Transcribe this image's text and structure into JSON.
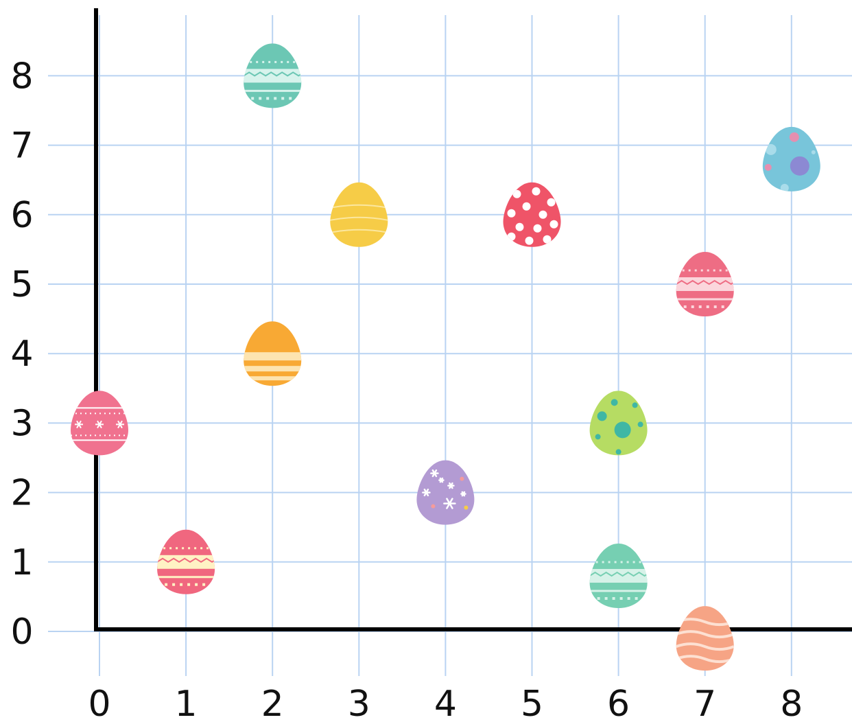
{
  "chart_data": {
    "type": "scatter",
    "title": "",
    "xlabel": "",
    "ylabel": "",
    "xlim": [
      0,
      8
    ],
    "ylim": [
      0,
      8
    ],
    "x_ticks": [
      "0",
      "1",
      "2",
      "3",
      "4",
      "5",
      "6",
      "7",
      "8"
    ],
    "y_ticks": [
      "0",
      "1",
      "2",
      "3",
      "4",
      "5",
      "6",
      "7",
      "8"
    ],
    "grid": true,
    "grid_color": "#b9d3f2",
    "axis_color": "#000000",
    "points": [
      {
        "x": 0,
        "y": 3,
        "marker": "pink-egg-stars",
        "color": "#f0728f",
        "accent": "#ffffff",
        "pattern": "stars"
      },
      {
        "x": 1,
        "y": 1,
        "marker": "red-cream-egg-zigzag",
        "color": "#f0677f",
        "accent": "#fff2c4",
        "pattern": "band"
      },
      {
        "x": 2,
        "y": 8,
        "marker": "teal-egg-dots",
        "color": "#6cc7b4",
        "accent": "#d7f3ec",
        "pattern": "band"
      },
      {
        "x": 2,
        "y": 4,
        "marker": "orange-egg-stripes",
        "color": "#f8a934",
        "accent": "#fde4b0",
        "pattern": "stripes"
      },
      {
        "x": 3,
        "y": 6,
        "marker": "yellow-egg-lines",
        "color": "#f6cc47",
        "accent": "#fbe7a0",
        "pattern": "lines"
      },
      {
        "x": 4,
        "y": 2,
        "marker": "purple-egg-flowers",
        "color": "#b39bd3",
        "accent": "#ffffff",
        "pattern": "flowers"
      },
      {
        "x": 5,
        "y": 6,
        "marker": "red-egg-polka-dots",
        "color": "#ef5468",
        "accent": "#ffffff",
        "pattern": "dots"
      },
      {
        "x": 6,
        "y": 3,
        "marker": "green-egg-spots",
        "color": "#b6dc63",
        "accent": "#3fb7a4",
        "pattern": "spots"
      },
      {
        "x": 6,
        "y": 0.8,
        "marker": "mint-egg-stripes",
        "color": "#76cfb2",
        "accent": "#d6f2e8",
        "pattern": "band"
      },
      {
        "x": 7,
        "y": 5,
        "marker": "pink-egg-waves",
        "color": "#ee6d84",
        "accent": "#fbd6dc",
        "pattern": "band"
      },
      {
        "x": 7,
        "y": -0.1,
        "marker": "peach-egg-waves",
        "color": "#f6a485",
        "accent": "#fde0d2",
        "pattern": "waves"
      },
      {
        "x": 8,
        "y": 6.8,
        "marker": "blue-egg-spots",
        "color": "#78c5da",
        "accent": "#8c89d3",
        "pattern": "bubbles"
      }
    ]
  }
}
